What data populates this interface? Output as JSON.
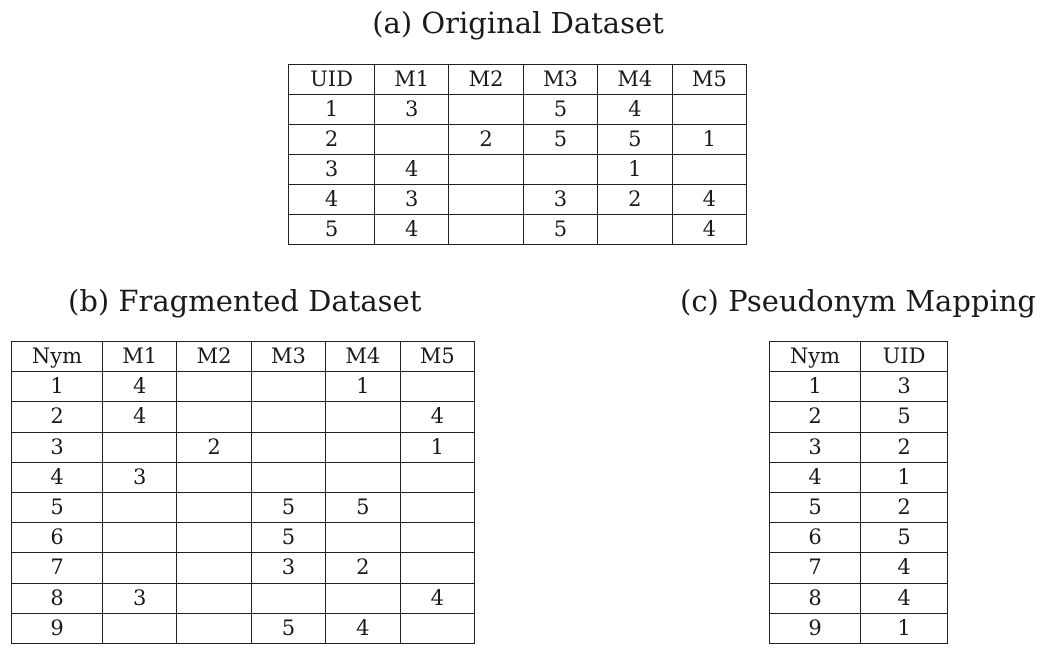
{
  "original": {
    "caption": "(a) Original Dataset",
    "headers": [
      "UID",
      "M1",
      "M2",
      "M3",
      "M4",
      "M5"
    ],
    "rows": [
      [
        "1",
        "3",
        "",
        "5",
        "4",
        ""
      ],
      [
        "2",
        "",
        "2",
        "5",
        "5",
        "1"
      ],
      [
        "3",
        "4",
        "",
        "",
        "1",
        ""
      ],
      [
        "4",
        "3",
        "",
        "3",
        "2",
        "4"
      ],
      [
        "5",
        "4",
        "",
        "5",
        "",
        "4"
      ]
    ]
  },
  "fragmented": {
    "caption": "(b) Fragmented Dataset",
    "headers": [
      "Nym",
      "M1",
      "M2",
      "M3",
      "M4",
      "M5"
    ],
    "rows": [
      [
        "1",
        "4",
        "",
        "",
        "1",
        ""
      ],
      [
        "2",
        "4",
        "",
        "",
        "",
        "4"
      ],
      [
        "3",
        "",
        "2",
        "",
        "",
        "1"
      ],
      [
        "4",
        "3",
        "",
        "",
        "",
        ""
      ],
      [
        "5",
        "",
        "",
        "5",
        "5",
        ""
      ],
      [
        "6",
        "",
        "",
        "5",
        "",
        ""
      ],
      [
        "7",
        "",
        "",
        "3",
        "2",
        ""
      ],
      [
        "8",
        "3",
        "",
        "",
        "",
        "4"
      ],
      [
        "9",
        "",
        "",
        "5",
        "4",
        ""
      ]
    ]
  },
  "mapping": {
    "caption": "(c) Pseudonym Mapping",
    "headers": [
      "Nym",
      "UID"
    ],
    "rows": [
      [
        "1",
        "3"
      ],
      [
        "2",
        "5"
      ],
      [
        "3",
        "2"
      ],
      [
        "4",
        "1"
      ],
      [
        "5",
        "2"
      ],
      [
        "6",
        "5"
      ],
      [
        "7",
        "4"
      ],
      [
        "8",
        "4"
      ],
      [
        "9",
        "1"
      ]
    ]
  }
}
